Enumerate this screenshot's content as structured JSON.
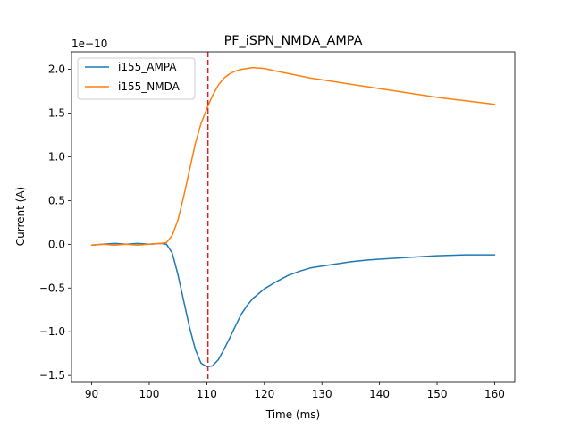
{
  "chart_data": {
    "type": "line",
    "title": "PF_iSPN_NMDA_AMPA",
    "xlabel": "Time (ms)",
    "ylabel": "Current (A)",
    "y_offset_label": "1e−10",
    "y_scale_factor": 1e-10,
    "xlim": [
      86.5,
      163.5
    ],
    "ylim": [
      -1.57,
      2.2
    ],
    "x_ticks": [
      90,
      100,
      110,
      120,
      130,
      140,
      150,
      160
    ],
    "y_ticks": [
      -1.5,
      -1.0,
      -0.5,
      0.0,
      0.5,
      1.0,
      1.5,
      2.0
    ],
    "y_tick_labels": [
      "−1.5",
      "−1.0",
      "−0.5",
      "0.0",
      "0.5",
      "1.0",
      "1.5",
      "2.0"
    ],
    "grid": false,
    "legend_position": "top-left",
    "vline": {
      "x": 110.2,
      "color": "#d62728",
      "style": "dashed"
    },
    "series": [
      {
        "name": "i155_AMPA",
        "color": "#1f77b4",
        "x": [
          90,
          92,
          94,
          96,
          98,
          100,
          102,
          103,
          104,
          105,
          106,
          107,
          108,
          109,
          110,
          111,
          112,
          113,
          114,
          115,
          116,
          117,
          118,
          120,
          122,
          124,
          126,
          128,
          130,
          132,
          135,
          138,
          140,
          145,
          150,
          155,
          160
        ],
        "y": [
          -0.01,
          0.0,
          0.01,
          0.0,
          0.01,
          0.0,
          0.01,
          0.0,
          -0.1,
          -0.35,
          -0.65,
          -0.95,
          -1.2,
          -1.36,
          -1.4,
          -1.39,
          -1.32,
          -1.2,
          -1.07,
          -0.93,
          -0.8,
          -0.7,
          -0.62,
          -0.51,
          -0.43,
          -0.36,
          -0.31,
          -0.27,
          -0.25,
          -0.23,
          -0.2,
          -0.18,
          -0.17,
          -0.15,
          -0.13,
          -0.12,
          -0.12
        ]
      },
      {
        "name": "i155_NMDA",
        "color": "#ff7f0e",
        "x": [
          90,
          92,
          94,
          96,
          98,
          100,
          102,
          103,
          104,
          105,
          106,
          107,
          108,
          109,
          110,
          111,
          112,
          113,
          114,
          115,
          116,
          118,
          120,
          122,
          125,
          128,
          130,
          135,
          140,
          145,
          150,
          155,
          160
        ],
        "y": [
          -0.01,
          0.0,
          -0.01,
          0.0,
          -0.01,
          0.0,
          0.01,
          0.02,
          0.1,
          0.28,
          0.55,
          0.85,
          1.15,
          1.38,
          1.55,
          1.7,
          1.82,
          1.9,
          1.95,
          1.98,
          2.0,
          2.02,
          2.01,
          1.98,
          1.94,
          1.9,
          1.88,
          1.83,
          1.78,
          1.73,
          1.68,
          1.64,
          1.6
        ]
      }
    ]
  }
}
